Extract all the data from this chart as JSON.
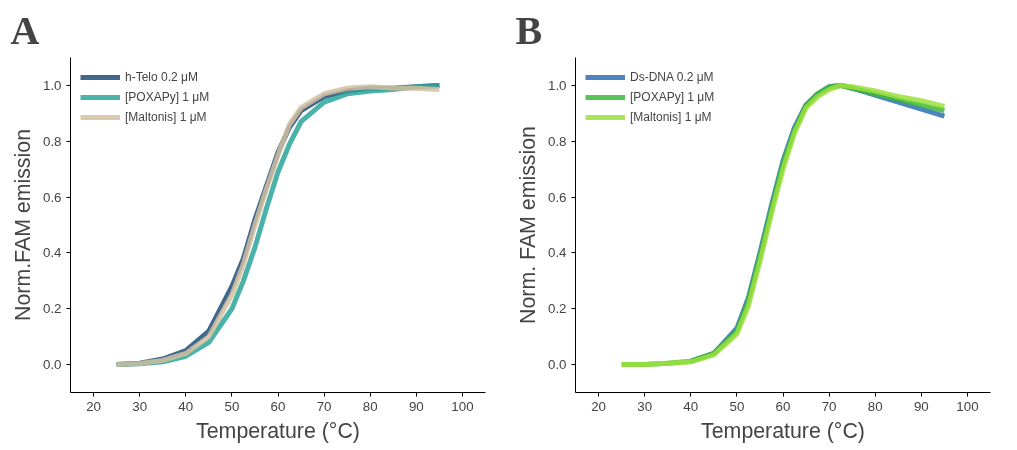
{
  "chart_data": [
    {
      "type": "line",
      "title": "A",
      "xlabel": "Temperature (°C)",
      "ylabel": "Norm.FAM emission",
      "xlim": [
        15,
        105
      ],
      "ylim": [
        -0.1,
        1.1
      ],
      "xticks": [
        20,
        30,
        40,
        50,
        60,
        70,
        80,
        90,
        100
      ],
      "yticks": [
        {
          "value": 0,
          "label": "0.0"
        },
        {
          "value": 0.2,
          "label": "0.2"
        },
        {
          "value": 0.4,
          "label": "0.4"
        },
        {
          "value": 0.6,
          "label": "0.6"
        },
        {
          "value": 0.8,
          "label": "0.8"
        },
        {
          "value": 1,
          "label": "1.0"
        }
      ],
      "grid": false,
      "legend": "top left",
      "line_style": "solid",
      "marker": "none",
      "x": [
        25,
        30,
        35,
        40,
        45,
        50,
        52.5,
        55,
        57.5,
        60,
        62.5,
        65,
        70,
        75,
        80,
        85,
        90,
        95
      ],
      "series": [
        {
          "name": "h-Telo 0.2 μM",
          "color": "#1f4e79",
          "values": [
            0,
            0.005,
            0.02,
            0.05,
            0.12,
            0.28,
            0.38,
            0.52,
            0.64,
            0.76,
            0.85,
            0.91,
            0.96,
            0.98,
            0.99,
            0.99,
            0.995,
            1.0
          ]
        },
        {
          "name": "[POXAPy] 1 μM",
          "color": "#2aa59a",
          "values": [
            0,
            0.003,
            0.01,
            0.03,
            0.08,
            0.2,
            0.3,
            0.42,
            0.56,
            0.69,
            0.79,
            0.87,
            0.94,
            0.97,
            0.98,
            0.985,
            0.995,
            1.0
          ]
        },
        {
          "name": "[Maltonis] 1 μM",
          "color": "#d2c0a0",
          "values": [
            0,
            0.004,
            0.015,
            0.04,
            0.1,
            0.25,
            0.36,
            0.5,
            0.63,
            0.75,
            0.86,
            0.92,
            0.97,
            0.99,
            0.995,
            0.99,
            0.99,
            0.985
          ]
        }
      ]
    },
    {
      "type": "line",
      "title": "B",
      "xlabel": "Temperature (°C)",
      "ylabel": "Norm. FAM emission",
      "xlim": [
        15,
        105
      ],
      "ylim": [
        -0.1,
        1.1
      ],
      "xticks": [
        20,
        30,
        40,
        50,
        60,
        70,
        80,
        90,
        100
      ],
      "yticks": [
        {
          "value": 0,
          "label": "0.0"
        },
        {
          "value": 0.2,
          "label": "0.2"
        },
        {
          "value": 0.4,
          "label": "0.4"
        },
        {
          "value": 0.6,
          "label": "0.6"
        },
        {
          "value": 0.8,
          "label": "0.8"
        },
        {
          "value": 1,
          "label": "1.0"
        }
      ],
      "grid": false,
      "legend": "top left",
      "line_style": "solid",
      "marker": "none",
      "x": [
        25,
        30,
        35,
        40,
        45,
        50,
        52.5,
        55,
        57.5,
        60,
        62.5,
        65,
        67.5,
        70,
        72.5,
        75,
        80,
        85,
        90,
        95
      ],
      "series": [
        {
          "name": "Ds-DNA 0.2 μM",
          "color": "#2e6db4",
          "values": [
            null,
            null,
            null,
            0.012,
            0.04,
            0.13,
            0.24,
            0.4,
            0.57,
            0.73,
            0.85,
            0.93,
            0.97,
            0.995,
            1.0,
            0.99,
            0.965,
            0.94,
            0.915,
            0.89
          ]
        },
        {
          "name": "[POXAPy] 1 μM",
          "color": "#3cb83c",
          "values": [
            0,
            0,
            0.005,
            0.012,
            0.04,
            0.12,
            0.23,
            0.39,
            0.56,
            0.72,
            0.84,
            0.93,
            0.97,
            0.995,
            1.0,
            0.99,
            0.97,
            0.95,
            0.93,
            0.91
          ]
        },
        {
          "name": "[Maltonis] 1 μM",
          "color": "#9be03c",
          "values": [
            0,
            0,
            0.005,
            0.01,
            0.035,
            0.11,
            0.21,
            0.37,
            0.54,
            0.7,
            0.83,
            0.92,
            0.96,
            0.985,
            1.0,
            0.995,
            0.98,
            0.96,
            0.945,
            0.925
          ]
        }
      ]
    }
  ]
}
